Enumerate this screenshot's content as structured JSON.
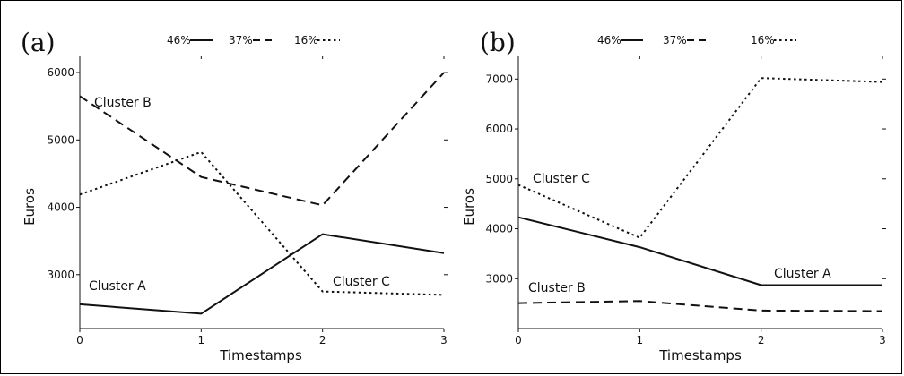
{
  "chart_data": [
    {
      "type": "line",
      "panel_label": "(a)",
      "xlabel": "Timestamps",
      "ylabel": "Euros",
      "x": [
        0,
        1,
        2,
        3
      ],
      "xticks": [
        "0",
        "1",
        "2",
        "3"
      ],
      "ylim": [
        2200,
        6200
      ],
      "yticks": [
        "3000",
        "4000",
        "5000",
        "6000"
      ],
      "legend": [
        "46%",
        "37%",
        "16%"
      ],
      "legend_position": "top",
      "grid": false,
      "series": [
        {
          "values": [
            2560,
            2420,
            3600,
            3320
          ],
          "style": "solid"
        },
        {
          "values": [
            5650,
            4450,
            4030,
            6000
          ],
          "style": "dashed"
        },
        {
          "values": [
            4190,
            4820,
            2750,
            2700
          ],
          "style": "dotted"
        }
      ],
      "annotations": [
        "Cluster A",
        "Cluster B",
        "Cluster C"
      ]
    },
    {
      "type": "line",
      "panel_label": "(b)",
      "xlabel": "Timestamps",
      "ylabel": "Euros",
      "x": [
        0,
        1,
        2,
        3
      ],
      "xticks": [
        "0",
        "1",
        "2",
        "3"
      ],
      "ylim": [
        2000,
        7400
      ],
      "yticks": [
        "3000",
        "4000",
        "5000",
        "6000",
        "7000"
      ],
      "legend": [
        "46%",
        "37%",
        "16%"
      ],
      "legend_position": "top",
      "grid": false,
      "series": [
        {
          "values": [
            4230,
            3630,
            2870,
            2870
          ],
          "style": "solid"
        },
        {
          "values": [
            2510,
            2550,
            2360,
            2350
          ],
          "style": "dashed"
        },
        {
          "values": [
            4880,
            3820,
            7020,
            6940
          ],
          "style": "dotted"
        }
      ],
      "annotations": [
        "Cluster C",
        "Cluster A",
        "Cluster B"
      ]
    }
  ]
}
